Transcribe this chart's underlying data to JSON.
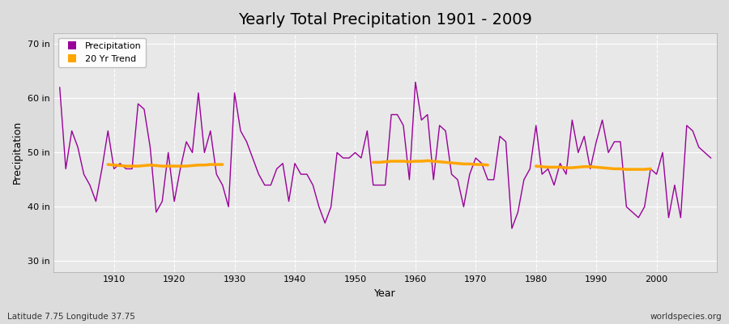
{
  "title": "Yearly Total Precipitation 1901 - 2009",
  "xlabel": "Year",
  "ylabel": "Precipitation",
  "subtitle": "Latitude 7.75 Longitude 37.75",
  "watermark": "worldspecies.org",
  "years": [
    1901,
    1902,
    1903,
    1904,
    1905,
    1906,
    1907,
    1908,
    1909,
    1910,
    1911,
    1912,
    1913,
    1914,
    1915,
    1916,
    1917,
    1918,
    1919,
    1920,
    1921,
    1922,
    1923,
    1924,
    1925,
    1926,
    1927,
    1928,
    1929,
    1930,
    1931,
    1932,
    1933,
    1934,
    1935,
    1936,
    1937,
    1938,
    1939,
    1940,
    1941,
    1942,
    1943,
    1944,
    1945,
    1946,
    1947,
    1948,
    1949,
    1950,
    1951,
    1952,
    1953,
    1954,
    1955,
    1956,
    1957,
    1958,
    1959,
    1960,
    1961,
    1962,
    1963,
    1964,
    1965,
    1966,
    1967,
    1968,
    1969,
    1970,
    1971,
    1972,
    1973,
    1974,
    1975,
    1976,
    1977,
    1978,
    1979,
    1980,
    1981,
    1982,
    1983,
    1984,
    1985,
    1986,
    1987,
    1988,
    1989,
    1990,
    1991,
    1992,
    1993,
    1994,
    1995,
    1996,
    1997,
    1998,
    1999,
    2000,
    2001,
    2002,
    2003,
    2004,
    2005,
    2006,
    2007,
    2008,
    2009
  ],
  "precip": [
    62,
    47,
    54,
    51,
    46,
    44,
    41,
    47,
    54,
    47,
    48,
    47,
    47,
    59,
    58,
    51,
    39,
    41,
    50,
    41,
    47,
    52,
    50,
    61,
    50,
    54,
    46,
    44,
    40,
    61,
    54,
    52,
    49,
    46,
    44,
    44,
    47,
    48,
    41,
    48,
    46,
    46,
    44,
    40,
    37,
    40,
    50,
    49,
    49,
    50,
    49,
    54,
    44,
    44,
    44,
    57,
    57,
    55,
    45,
    63,
    56,
    57,
    45,
    55,
    54,
    46,
    45,
    40,
    46,
    49,
    48,
    45,
    45,
    53,
    52,
    36,
    39,
    45,
    47,
    55,
    46,
    47,
    44,
    48,
    46,
    56,
    50,
    53,
    47,
    52,
    56,
    50,
    52,
    52,
    40,
    39,
    38,
    40,
    47,
    46,
    50,
    38,
    44,
    38,
    55,
    54,
    51,
    50,
    49
  ],
  "trend_seg1_years": [
    1909,
    1910,
    1911,
    1912,
    1913,
    1914,
    1915,
    1916,
    1917,
    1918,
    1919,
    1920,
    1921,
    1922,
    1923,
    1924,
    1925,
    1926,
    1927,
    1928
  ],
  "trend_seg1_vals": [
    47.8,
    47.7,
    47.6,
    47.5,
    47.5,
    47.5,
    47.6,
    47.7,
    47.6,
    47.5,
    47.5,
    47.5,
    47.5,
    47.5,
    47.6,
    47.7,
    47.7,
    47.8,
    47.8,
    47.8
  ],
  "trend_seg2_years": [
    1953,
    1954,
    1955,
    1956,
    1957,
    1958,
    1959,
    1960,
    1961,
    1962,
    1963,
    1964,
    1965,
    1966,
    1967,
    1968,
    1969,
    1970,
    1971,
    1972
  ],
  "trend_seg2_vals": [
    48.2,
    48.2,
    48.3,
    48.4,
    48.4,
    48.4,
    48.3,
    48.4,
    48.4,
    48.5,
    48.4,
    48.3,
    48.2,
    48.1,
    48.0,
    47.9,
    47.9,
    47.8,
    47.8,
    47.7
  ],
  "trend_seg3_years": [
    1980,
    1981,
    1982,
    1983,
    1984,
    1985,
    1986,
    1987,
    1988,
    1989,
    1990,
    1991,
    1992,
    1993,
    1994,
    1995,
    1996,
    1997,
    1998,
    1999
  ],
  "trend_seg3_vals": [
    47.5,
    47.4,
    47.3,
    47.3,
    47.3,
    47.2,
    47.2,
    47.3,
    47.4,
    47.4,
    47.3,
    47.2,
    47.1,
    47.0,
    47.0,
    46.9,
    46.9,
    46.9,
    46.9,
    47.0
  ],
  "precip_color": "#990099",
  "trend_color": "#FFA500",
  "bg_color": "#DCDCDC",
  "plot_bg_color": "#E8E8E8",
  "grid_color": "#FFFFFF",
  "ylim": [
    28,
    72
  ],
  "yticks": [
    30,
    40,
    50,
    60,
    70
  ],
  "ytick_labels": [
    "30 in",
    "40 in",
    "50 in",
    "60 in",
    "70 in"
  ],
  "title_fontsize": 14,
  "axis_label_fontsize": 9,
  "tick_fontsize": 8,
  "legend_fontsize": 8
}
